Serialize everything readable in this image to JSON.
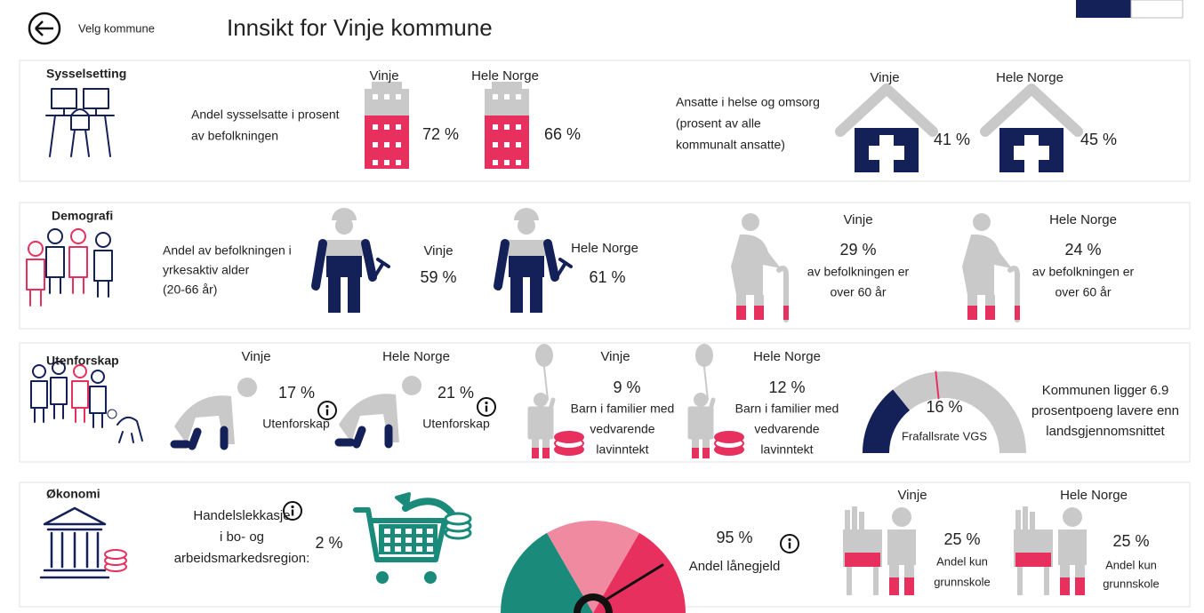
{
  "header": {
    "back_label": "Velg kommune",
    "title": "Innsikt for Vinje kommune"
  },
  "sections": [
    {
      "title": "Sysselsetting",
      "employment": {
        "lines": [
          "Andel sysselsatte i prosent",
          "av befolkningen"
        ],
        "headers": [
          "Vinje",
          "Hele Norge"
        ],
        "values": [
          "72 %",
          "66 %"
        ]
      },
      "health": {
        "lines": [
          "Ansatte i helse og omsorg",
          "(prosent av alle",
          "kommunalt ansatte)"
        ],
        "headers": [
          "Vinje",
          "Hele Norge"
        ],
        "values": [
          "41 %",
          "45 %"
        ]
      }
    },
    {
      "title": "Demografi",
      "working_age": {
        "lines": [
          "Andel av befolkningen i",
          "yrkesaktiv alder",
          "(20-66 år)"
        ],
        "headers": [
          "Vinje",
          "Hele Norge"
        ],
        "values": [
          "59 %",
          "61 %"
        ]
      },
      "over_60": {
        "headers": [
          "Vinje",
          "Hele Norge"
        ],
        "values": [
          "29 %",
          "24 %"
        ],
        "lines": [
          "av befolkningen er",
          "over 60 år"
        ]
      }
    },
    {
      "title": "Utenforskap",
      "outside": {
        "headers": [
          "Vinje",
          "Hele Norge"
        ],
        "values": [
          "17 %",
          "21 %"
        ],
        "label": "Utenforskap"
      },
      "low_income": {
        "headers": [
          "Vinje",
          "Hele Norge"
        ],
        "values": [
          "9 %",
          "12 %"
        ],
        "lines": [
          "Barn i familier med",
          "vedvarende",
          "lavinntekt"
        ]
      },
      "dropout": {
        "value": "16 %",
        "label": "Frafallsrate VGS",
        "note_lines": [
          "Kommunen ligger 6.9",
          "prosentpoeng lavere enn",
          "landsgjennomsnittet"
        ]
      }
    },
    {
      "title": "Økonomi",
      "trade_leakage": {
        "lines": [
          "Handelslekkasje",
          "i bo- og",
          "arbeidsmarkedsregion:"
        ],
        "value": "2 %"
      },
      "debt": {
        "value": "95 %",
        "label": "Andel lånegjeld"
      },
      "education": {
        "headers": [
          "Vinje",
          "Hele Norge"
        ],
        "values": [
          "25 %",
          "25 %"
        ],
        "lines": [
          "Andel kun",
          "grunnskole"
        ]
      }
    }
  ]
}
